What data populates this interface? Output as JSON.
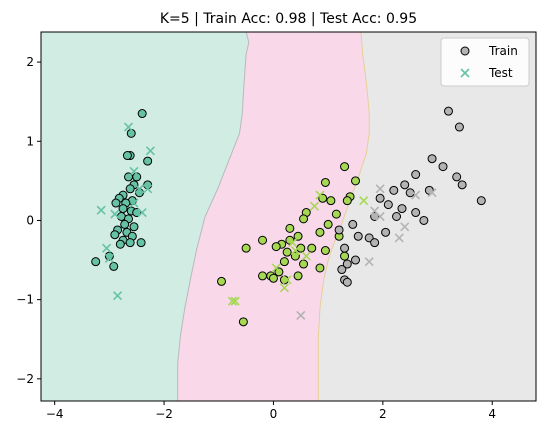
{
  "chart_data": {
    "type": "scatter",
    "title": "K=5 | Train Acc: 0.98 | Test Acc: 0.95",
    "xlabel": "",
    "ylabel": "",
    "xlim": [
      -4.25,
      4.8
    ],
    "ylim": [
      -2.28,
      2.38
    ],
    "xticks": [
      -4,
      -2,
      0,
      2,
      4
    ],
    "yticks": [
      -2,
      -1,
      0,
      1,
      2
    ],
    "grid": false,
    "legend_position": "top-right",
    "legend": [
      {
        "label": "Train",
        "marker": "circle"
      },
      {
        "label": "Test",
        "marker": "x"
      }
    ],
    "class_colors": {
      "region": [
        "#d1ece3",
        "#f9d8ea",
        "#e8e8e8"
      ],
      "point": [
        "#66c2a5",
        "#a6d854",
        "#b3b3b3"
      ]
    },
    "decision_boundaries": [
      {
        "between": [
          0,
          1
        ],
        "points": [
          [
            -1.75,
            -2.28
          ],
          [
            -1.75,
            -1.8
          ],
          [
            -1.7,
            -1.45
          ],
          [
            -1.62,
            -1.1
          ],
          [
            -1.52,
            -0.75
          ],
          [
            -1.4,
            -0.35
          ],
          [
            -1.25,
            0.05
          ],
          [
            -1.02,
            0.4
          ],
          [
            -0.82,
            0.75
          ],
          [
            -0.62,
            1.1
          ],
          [
            -0.57,
            1.35
          ],
          [
            -0.55,
            1.6
          ],
          [
            -0.52,
            1.9
          ],
          [
            -0.5,
            2.1
          ],
          [
            -0.45,
            2.25
          ],
          [
            -0.5,
            2.38
          ]
        ]
      },
      {
        "between": [
          1,
          2
        ],
        "points": [
          [
            0.82,
            -2.28
          ],
          [
            0.82,
            -1.5
          ],
          [
            0.85,
            -1.1
          ],
          [
            0.92,
            -0.75
          ],
          [
            1.0,
            -0.5
          ],
          [
            1.1,
            -0.3
          ],
          [
            1.22,
            -0.1
          ],
          [
            1.32,
            0.1
          ],
          [
            1.45,
            0.35
          ],
          [
            1.58,
            0.6
          ],
          [
            1.7,
            0.85
          ],
          [
            1.75,
            1.1
          ],
          [
            1.75,
            1.35
          ],
          [
            1.72,
            1.6
          ],
          [
            1.68,
            1.85
          ],
          [
            1.63,
            2.1
          ],
          [
            1.6,
            2.38
          ]
        ]
      }
    ],
    "series": [
      {
        "name": "Train",
        "marker": "circle",
        "points": [
          {
            "x": -2.4,
            "y": 1.35,
            "c": 0
          },
          {
            "x": -2.6,
            "y": 1.1,
            "c": 0
          },
          {
            "x": -2.3,
            "y": 0.75,
            "c": 0
          },
          {
            "x": -2.62,
            "y": 0.82,
            "c": 0
          },
          {
            "x": -2.67,
            "y": 0.82,
            "c": 0
          },
          {
            "x": -2.65,
            "y": 0.55,
            "c": 0
          },
          {
            "x": -2.5,
            "y": 0.55,
            "c": 0
          },
          {
            "x": -2.55,
            "y": 0.45,
            "c": 0
          },
          {
            "x": -2.3,
            "y": 0.45,
            "c": 0
          },
          {
            "x": -2.62,
            "y": 0.4,
            "c": 0
          },
          {
            "x": -2.45,
            "y": 0.35,
            "c": 0
          },
          {
            "x": -2.75,
            "y": 0.32,
            "c": 0
          },
          {
            "x": -2.82,
            "y": 0.28,
            "c": 0
          },
          {
            "x": -2.58,
            "y": 0.25,
            "c": 0
          },
          {
            "x": -2.7,
            "y": 0.22,
            "c": 0
          },
          {
            "x": -2.88,
            "y": 0.22,
            "c": 0
          },
          {
            "x": -2.75,
            "y": 0.15,
            "c": 0
          },
          {
            "x": -2.6,
            "y": 0.12,
            "c": 0
          },
          {
            "x": -2.5,
            "y": 0.1,
            "c": 0
          },
          {
            "x": -2.78,
            "y": 0.05,
            "c": 0
          },
          {
            "x": -2.65,
            "y": 0.02,
            "c": 0
          },
          {
            "x": -2.72,
            "y": -0.05,
            "c": 0
          },
          {
            "x": -2.55,
            "y": -0.08,
            "c": 0
          },
          {
            "x": -2.85,
            "y": -0.12,
            "c": 0
          },
          {
            "x": -2.68,
            "y": -0.15,
            "c": 0
          },
          {
            "x": -2.9,
            "y": -0.18,
            "c": 0
          },
          {
            "x": -2.58,
            "y": -0.2,
            "c": 0
          },
          {
            "x": -2.75,
            "y": -0.25,
            "c": 0
          },
          {
            "x": -2.62,
            "y": -0.28,
            "c": 0
          },
          {
            "x": -2.8,
            "y": -0.3,
            "c": 0
          },
          {
            "x": -2.42,
            "y": -0.28,
            "c": 0
          },
          {
            "x": -3.25,
            "y": -0.52,
            "c": 0
          },
          {
            "x": -2.92,
            "y": -0.58,
            "c": 0
          },
          {
            "x": -3.0,
            "y": -0.45,
            "c": 0
          },
          {
            "x": 1.3,
            "y": 0.68,
            "c": 1
          },
          {
            "x": 1.5,
            "y": 0.5,
            "c": 1
          },
          {
            "x": 0.95,
            "y": 0.48,
            "c": 1
          },
          {
            "x": 1.4,
            "y": 0.3,
            "c": 1
          },
          {
            "x": 0.9,
            "y": 0.28,
            "c": 1
          },
          {
            "x": 1.05,
            "y": 0.25,
            "c": 1
          },
          {
            "x": 1.35,
            "y": 0.25,
            "c": 1
          },
          {
            "x": 0.6,
            "y": 0.1,
            "c": 1
          },
          {
            "x": 1.15,
            "y": 0.08,
            "c": 1
          },
          {
            "x": 0.55,
            "y": 0.02,
            "c": 1
          },
          {
            "x": 1.0,
            "y": -0.05,
            "c": 1
          },
          {
            "x": 0.3,
            "y": -0.1,
            "c": 1
          },
          {
            "x": 0.85,
            "y": -0.15,
            "c": 1
          },
          {
            "x": 1.2,
            "y": -0.2,
            "c": 1
          },
          {
            "x": 0.45,
            "y": -0.2,
            "c": 1
          },
          {
            "x": -0.5,
            "y": -0.35,
            "c": 1
          },
          {
            "x": -0.2,
            "y": -0.25,
            "c": 1
          },
          {
            "x": 0.15,
            "y": -0.3,
            "c": 1
          },
          {
            "x": 0.3,
            "y": -0.25,
            "c": 1
          },
          {
            "x": 0.05,
            "y": -0.33,
            "c": 1
          },
          {
            "x": 0.25,
            "y": -0.4,
            "c": 1
          },
          {
            "x": 0.5,
            "y": -0.35,
            "c": 1
          },
          {
            "x": 0.7,
            "y": -0.35,
            "c": 1
          },
          {
            "x": 0.95,
            "y": -0.38,
            "c": 1
          },
          {
            "x": 0.4,
            "y": -0.45,
            "c": 1
          },
          {
            "x": 1.3,
            "y": -0.45,
            "c": 1
          },
          {
            "x": 0.2,
            "y": -0.52,
            "c": 1
          },
          {
            "x": 0.55,
            "y": -0.55,
            "c": 1
          },
          {
            "x": 0.85,
            "y": -0.6,
            "c": 1
          },
          {
            "x": 0.1,
            "y": -0.65,
            "c": 1
          },
          {
            "x": 0.45,
            "y": -0.7,
            "c": 1
          },
          {
            "x": -0.2,
            "y": -0.7,
            "c": 1
          },
          {
            "x": -0.05,
            "y": -0.7,
            "c": 1
          },
          {
            "x": 0.0,
            "y": -0.73,
            "c": 1
          },
          {
            "x": 0.2,
            "y": -0.75,
            "c": 1
          },
          {
            "x": -0.95,
            "y": -0.77,
            "c": 1
          },
          {
            "x": -0.55,
            "y": -1.28,
            "c": 1
          },
          {
            "x": 3.2,
            "y": 1.38,
            "c": 2
          },
          {
            "x": 3.4,
            "y": 1.18,
            "c": 2
          },
          {
            "x": 2.9,
            "y": 0.78,
            "c": 2
          },
          {
            "x": 3.1,
            "y": 0.68,
            "c": 2
          },
          {
            "x": 2.6,
            "y": 0.58,
            "c": 2
          },
          {
            "x": 2.4,
            "y": 0.45,
            "c": 2
          },
          {
            "x": 2.5,
            "y": 0.35,
            "c": 2
          },
          {
            "x": 3.35,
            "y": 0.55,
            "c": 2
          },
          {
            "x": 3.45,
            "y": 0.45,
            "c": 2
          },
          {
            "x": 2.2,
            "y": 0.38,
            "c": 2
          },
          {
            "x": 2.85,
            "y": 0.38,
            "c": 2
          },
          {
            "x": 1.95,
            "y": 0.28,
            "c": 2
          },
          {
            "x": 3.8,
            "y": 0.25,
            "c": 2
          },
          {
            "x": 2.1,
            "y": 0.2,
            "c": 2
          },
          {
            "x": 2.35,
            "y": 0.15,
            "c": 2
          },
          {
            "x": 2.6,
            "y": 0.1,
            "c": 2
          },
          {
            "x": 1.85,
            "y": 0.05,
            "c": 2
          },
          {
            "x": 2.25,
            "y": 0.05,
            "c": 2
          },
          {
            "x": 2.75,
            "y": 0.0,
            "c": 2
          },
          {
            "x": 1.45,
            "y": -0.05,
            "c": 2
          },
          {
            "x": 1.2,
            "y": -0.12,
            "c": 2
          },
          {
            "x": 1.55,
            "y": -0.2,
            "c": 2
          },
          {
            "x": 1.75,
            "y": -0.22,
            "c": 2
          },
          {
            "x": 2.05,
            "y": -0.15,
            "c": 2
          },
          {
            "x": 1.85,
            "y": -0.28,
            "c": 2
          },
          {
            "x": 1.3,
            "y": -0.35,
            "c": 2
          },
          {
            "x": 1.5,
            "y": -0.5,
            "c": 2
          },
          {
            "x": 1.35,
            "y": -0.55,
            "c": 2
          },
          {
            "x": 1.25,
            "y": -0.62,
            "c": 2
          },
          {
            "x": 1.3,
            "y": -0.75,
            "c": 2
          },
          {
            "x": 1.35,
            "y": -0.78,
            "c": 2
          }
        ]
      },
      {
        "name": "Test",
        "marker": "x",
        "points": [
          {
            "x": -2.65,
            "y": 1.18,
            "c": 0
          },
          {
            "x": -2.25,
            "y": 0.88,
            "c": 0
          },
          {
            "x": -2.55,
            "y": 0.62,
            "c": 0
          },
          {
            "x": -2.45,
            "y": 0.4,
            "c": 0
          },
          {
            "x": -2.3,
            "y": 0.4,
            "c": 0
          },
          {
            "x": -2.55,
            "y": 0.22,
            "c": 0
          },
          {
            "x": -3.15,
            "y": 0.13,
            "c": 0
          },
          {
            "x": -2.9,
            "y": 0.08,
            "c": 0
          },
          {
            "x": -2.4,
            "y": 0.1,
            "c": 0
          },
          {
            "x": -3.05,
            "y": -0.35,
            "c": 0
          },
          {
            "x": -3.0,
            "y": -0.48,
            "c": 0
          },
          {
            "x": -2.85,
            "y": -0.95,
            "c": 0
          },
          {
            "x": 0.85,
            "y": 0.32,
            "c": 1
          },
          {
            "x": 1.65,
            "y": 0.25,
            "c": 1
          },
          {
            "x": 0.75,
            "y": 0.18,
            "c": 1
          },
          {
            "x": 0.35,
            "y": -0.28,
            "c": 1
          },
          {
            "x": 0.4,
            "y": -0.38,
            "c": 1
          },
          {
            "x": 0.6,
            "y": -0.45,
            "c": 1
          },
          {
            "x": 0.05,
            "y": -0.6,
            "c": 1
          },
          {
            "x": 0.25,
            "y": -0.75,
            "c": 1
          },
          {
            "x": 0.2,
            "y": -0.85,
            "c": 1
          },
          {
            "x": -0.7,
            "y": -1.02,
            "c": 1
          },
          {
            "x": -0.75,
            "y": -1.02,
            "c": 1
          },
          {
            "x": 1.95,
            "y": 0.4,
            "c": 2
          },
          {
            "x": 2.9,
            "y": 0.35,
            "c": 2
          },
          {
            "x": 2.6,
            "y": 0.32,
            "c": 2
          },
          {
            "x": 1.85,
            "y": 0.12,
            "c": 2
          },
          {
            "x": 1.95,
            "y": 0.05,
            "c": 2
          },
          {
            "x": 2.4,
            "y": -0.08,
            "c": 2
          },
          {
            "x": 2.3,
            "y": -0.22,
            "c": 2
          },
          {
            "x": 1.75,
            "y": -0.52,
            "c": 2
          },
          {
            "x": 0.5,
            "y": -1.2,
            "c": 2
          }
        ]
      }
    ]
  }
}
